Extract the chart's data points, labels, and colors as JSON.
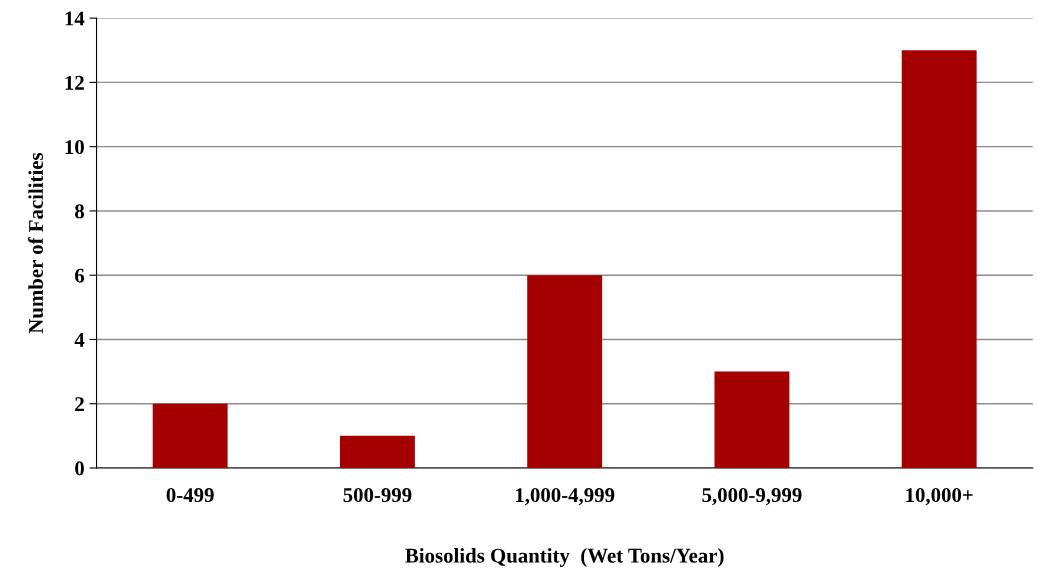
{
  "chart_data": {
    "type": "bar",
    "categories": [
      "0-499",
      "500-999",
      "1,000-4,999",
      "5,000-9,999",
      "10,000+"
    ],
    "values": [
      2,
      1,
      6,
      3,
      13
    ],
    "color": "#a50000",
    "xlabel": "Biosolids Quantity  (Wet Tons/Year)",
    "ylabel": "Number of Facilities",
    "ylim": [
      0,
      14
    ],
    "yticks": [
      0,
      2,
      4,
      6,
      8,
      10,
      12,
      14
    ],
    "grid": "y",
    "legend": false
  }
}
